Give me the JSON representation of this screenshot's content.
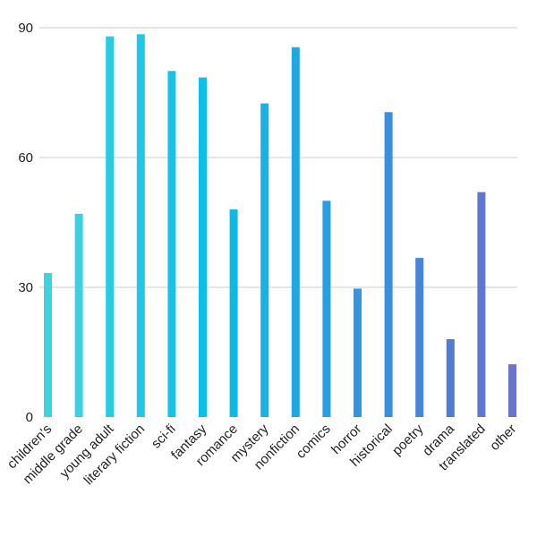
{
  "chart_data": {
    "type": "bar",
    "title": "",
    "xlabel": "",
    "ylabel": "",
    "ylim": [
      0,
      90
    ],
    "yticks": [
      0,
      30,
      60,
      90
    ],
    "grid": true,
    "categories": [
      "children's",
      "middle grade",
      "young adult",
      "literary fiction",
      "sci-fi",
      "fantasy",
      "romance",
      "mystery",
      "nonfiction",
      "comics",
      "horror",
      "historical",
      "poetry",
      "drama",
      "translated",
      "other"
    ],
    "values": [
      33.3,
      47,
      88,
      88.5,
      80,
      78.5,
      48,
      72.5,
      85.5,
      50,
      29.7,
      70.5,
      36.8,
      18,
      52,
      12.2
    ],
    "colors": [
      "#3fd3e1",
      "#3dd0e2",
      "#27cce3",
      "#20c8e5",
      "#17c3e6",
      "#0dbfe6",
      "#0dbae6",
      "#17b1e5",
      "#20a8e4",
      "#289ee3",
      "#3396e0",
      "#3a8ede",
      "#4585da",
      "#527bd6",
      "#5e77d0",
      "#6b74cb"
    ]
  }
}
